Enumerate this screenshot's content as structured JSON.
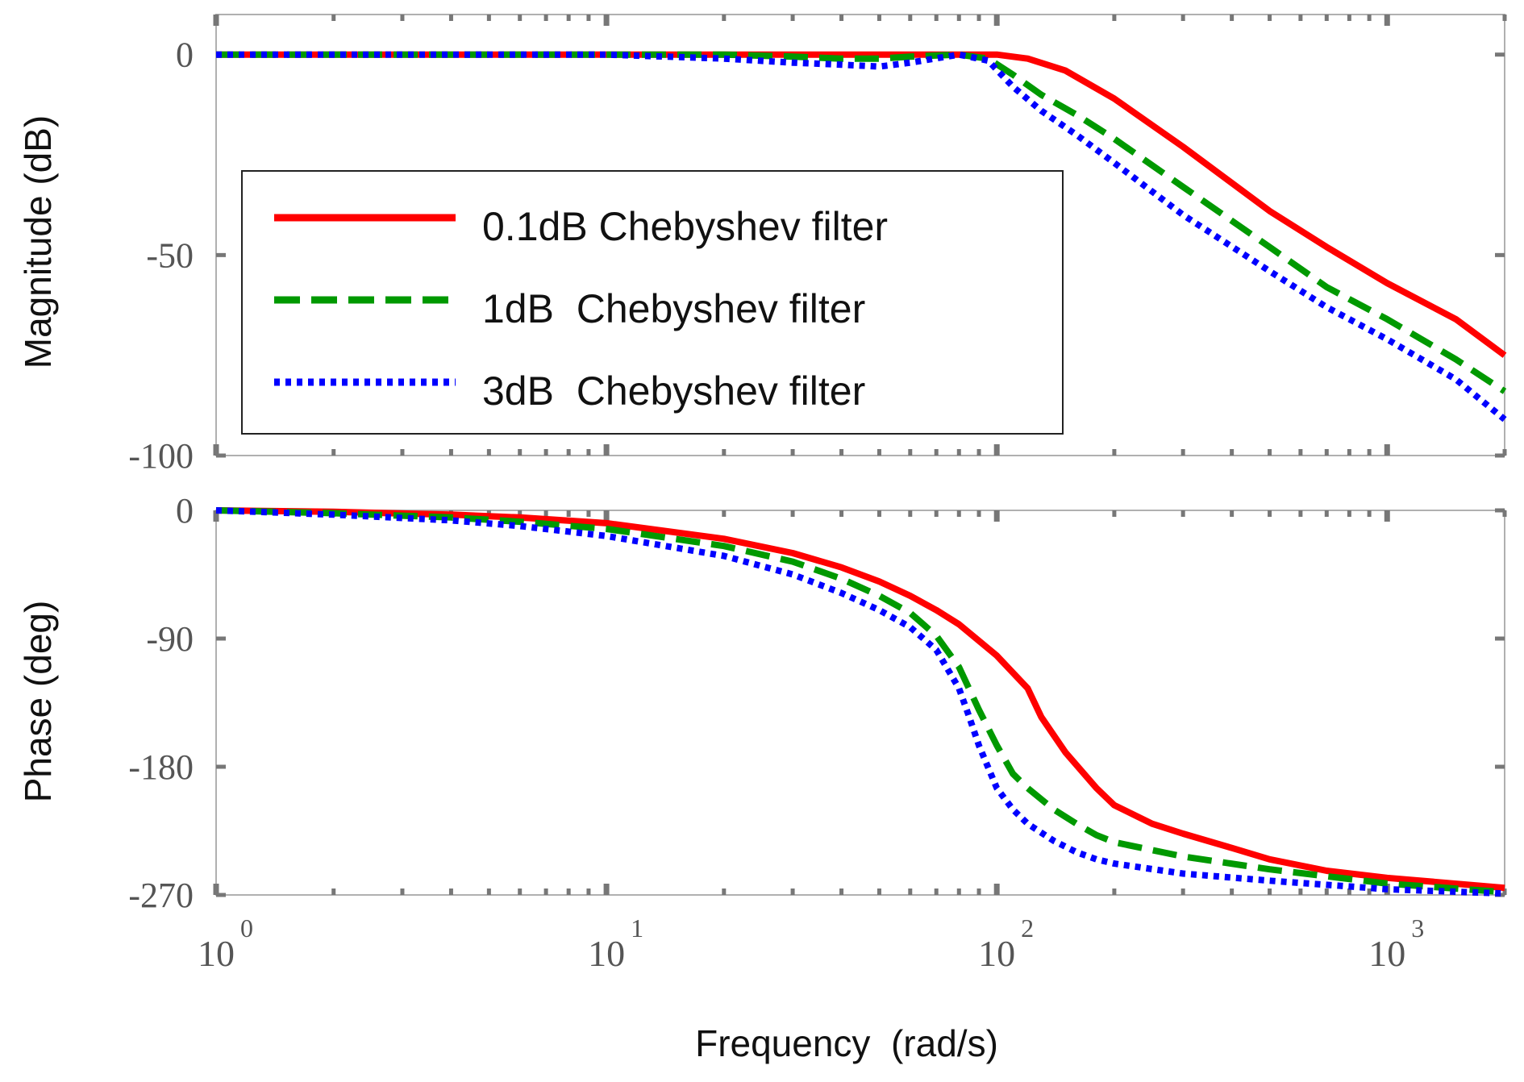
{
  "chart_data": [
    {
      "type": "line",
      "id": "magnitude",
      "title": "",
      "xlabel": "",
      "ylabel": "Magnitude (dB)",
      "xscale": "log",
      "xlim": [
        1,
        2000
      ],
      "ylim": [
        -100,
        10
      ],
      "yticks": [
        0,
        -50,
        -100
      ],
      "ytick_labels": [
        "0",
        "-50",
        "-100"
      ],
      "series": [
        {
          "name": "0.1dB Chebyshev filter",
          "color": "#ff0000",
          "style": "solid",
          "x": [
            1,
            10,
            20,
            40,
            60,
            80,
            100,
            120,
            150,
            200,
            300,
            500,
            700,
            1000,
            1500,
            2000
          ],
          "y": [
            0,
            0,
            0,
            0,
            0,
            0,
            0,
            -1,
            -4,
            -11,
            -23,
            -39,
            -48,
            -57,
            -66,
            -75
          ]
        },
        {
          "name": "1dB Chebyshev filter",
          "color": "#009900",
          "style": "dashed",
          "x": [
            1,
            10,
            20,
            30,
            40,
            50,
            60,
            80,
            95,
            110,
            130,
            160,
            200,
            300,
            500,
            700,
            1000,
            1500,
            2000
          ],
          "y": [
            0,
            0,
            0,
            -0.5,
            -1,
            -1,
            -0.5,
            0,
            -1,
            -5,
            -10,
            -15,
            -21,
            -33,
            -48,
            -58,
            -66,
            -76,
            -84
          ]
        },
        {
          "name": "3dB Chebyshev filter",
          "color": "#0000ff",
          "style": "dotted",
          "x": [
            1,
            10,
            20,
            30,
            40,
            50,
            60,
            80,
            95,
            110,
            130,
            160,
            200,
            300,
            500,
            700,
            1000,
            1500,
            2000
          ],
          "y": [
            0,
            0,
            -1,
            -2,
            -2.5,
            -3,
            -2,
            0,
            -1.5,
            -8,
            -14,
            -20,
            -27,
            -40,
            -54,
            -63,
            -71,
            -81,
            -91
          ]
        }
      ],
      "legend": {
        "location": "left-center",
        "entries": [
          "0.1dB Chebyshev filter",
          "1dB  Chebyshev filter",
          "3dB  Chebyshev filter"
        ]
      }
    },
    {
      "type": "line",
      "id": "phase",
      "title": "",
      "xlabel": "Frequency  (rad/s)",
      "ylabel": "Phase (deg)",
      "xscale": "log",
      "xlim": [
        1,
        2000
      ],
      "ylim": [
        -270,
        0
      ],
      "yticks": [
        0,
        -90,
        -180,
        -270
      ],
      "ytick_labels": [
        "0",
        "-90",
        "-180",
        "-270"
      ],
      "xticks": [
        1,
        10,
        100,
        1000
      ],
      "xtick_labels": [
        {
          "base": "10",
          "exp": "0"
        },
        {
          "base": "10",
          "exp": "1"
        },
        {
          "base": "10",
          "exp": "2"
        },
        {
          "base": "10",
          "exp": "3"
        }
      ],
      "series": [
        {
          "name": "0.1dB Chebyshev filter",
          "color": "#ff0000",
          "style": "solid",
          "x": [
            1,
            2,
            4,
            6,
            10,
            20,
            30,
            40,
            50,
            60,
            70,
            80,
            100,
            120,
            130,
            150,
            180,
            200,
            250,
            300,
            400,
            500,
            700,
            1000,
            2000
          ],
          "y": [
            0,
            -1,
            -3,
            -5,
            -9,
            -20,
            -30,
            -40,
            -50,
            -60,
            -70,
            -80,
            -102,
            -125,
            -145,
            -170,
            -195,
            -207,
            -220,
            -227,
            -237,
            -245,
            -253,
            -258,
            -265
          ]
        },
        {
          "name": "1dB Chebyshev filter",
          "color": "#009900",
          "style": "dashed",
          "x": [
            1,
            2,
            4,
            6,
            10,
            20,
            30,
            40,
            50,
            60,
            70,
            80,
            90,
            100,
            110,
            120,
            140,
            160,
            180,
            200,
            300,
            500,
            1000,
            2000
          ],
          "y": [
            0,
            -2,
            -5,
            -8,
            -13,
            -25,
            -36,
            -48,
            -60,
            -72,
            -88,
            -110,
            -140,
            -165,
            -185,
            -195,
            -210,
            -220,
            -228,
            -233,
            -243,
            -252,
            -262,
            -268
          ]
        },
        {
          "name": "3dB Chebyshev filter",
          "color": "#0000ff",
          "style": "dotted",
          "x": [
            1,
            2,
            4,
            6,
            10,
            20,
            30,
            40,
            50,
            60,
            70,
            80,
            85,
            90,
            100,
            110,
            120,
            140,
            160,
            180,
            200,
            300,
            500,
            1000,
            2000
          ],
          "y": [
            0,
            -3,
            -7,
            -11,
            -18,
            -32,
            -45,
            -58,
            -70,
            -82,
            -98,
            -125,
            -145,
            -165,
            -195,
            -210,
            -220,
            -232,
            -240,
            -245,
            -248,
            -255,
            -260,
            -266,
            -269
          ]
        }
      ]
    }
  ]
}
